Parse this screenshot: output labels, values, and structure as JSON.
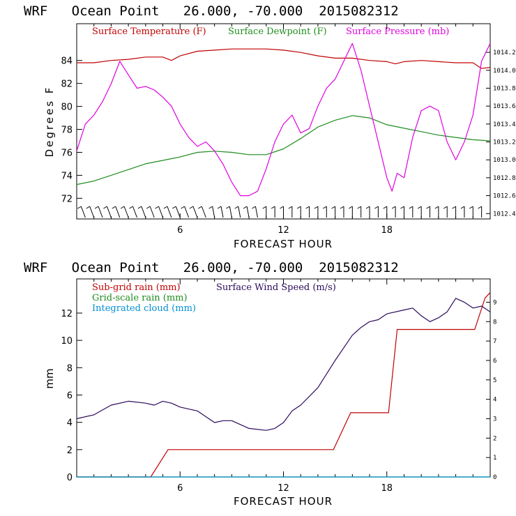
{
  "colors": {
    "temperature": "#c00000",
    "dewpoint": "#1e8c1e",
    "pressure": "#e000e0",
    "subgrid_rain": "#c00000",
    "gridscale_rain": "#1e8c1e",
    "cloud": "#0090d0",
    "wind": "#2a0a5a",
    "barb": "#000000"
  },
  "chart_data": [
    {
      "type": "line",
      "title": "WRF   Ocean Point   26.000, -70.000  2015082312",
      "xlabel": "FORECAST HOUR",
      "ylabel": "Degrees F",
      "xlim": [
        0,
        24
      ],
      "ylim": [
        70.2,
        87.2
      ],
      "xticks": [
        6,
        12,
        18
      ],
      "yticks": [
        72,
        74,
        76,
        78,
        80,
        82,
        84
      ],
      "y2lim": [
        1012.34,
        1014.52
      ],
      "y2ticks": [
        "1012.4",
        "1012.6",
        "1012.8",
        "1013.0",
        "1013.2",
        "1013.4",
        "1013.6",
        "1013.8",
        "1014.0",
        "1014.2"
      ],
      "legend": [
        "Surface Temperature (F)",
        "Surface Dewpoint (F)",
        "Surface Pressure (mb)"
      ],
      "wind_barbs": "wind barbs along bottom of panel",
      "series": [
        {
          "name": "Surface Temperature (F)",
          "axis": "left",
          "x": [
            0,
            1,
            2,
            3,
            4,
            5,
            5.5,
            6,
            7,
            8,
            9,
            10,
            11,
            12,
            13,
            14,
            15,
            16,
            17,
            18,
            18.5,
            19,
            20,
            21,
            22,
            23,
            23.5,
            24
          ],
          "values": [
            83.8,
            83.8,
            84.0,
            84.1,
            84.3,
            84.3,
            84.0,
            84.4,
            84.8,
            84.9,
            85.0,
            85.0,
            85.0,
            84.9,
            84.7,
            84.4,
            84.2,
            84.2,
            84.0,
            83.9,
            83.7,
            83.9,
            84.0,
            83.9,
            83.8,
            83.8,
            83.3,
            83.4
          ]
        },
        {
          "name": "Surface Dewpoint (F)",
          "axis": "left",
          "x": [
            0,
            1,
            2,
            3,
            4,
            5,
            6,
            7,
            8,
            9,
            10,
            11,
            12,
            13,
            14,
            15,
            16,
            17,
            18,
            19,
            20,
            21,
            22,
            23,
            24
          ],
          "values": [
            73.2,
            73.5,
            74.0,
            74.5,
            75.0,
            75.3,
            75.6,
            76.0,
            76.1,
            76.0,
            75.8,
            75.8,
            76.3,
            77.2,
            78.2,
            78.8,
            79.2,
            79.0,
            78.4,
            78.1,
            77.8,
            77.5,
            77.3,
            77.1,
            77.0
          ]
        },
        {
          "name": "Surface Pressure (mb)",
          "axis": "right",
          "x": [
            0,
            0.5,
            1,
            1.5,
            2,
            2.5,
            3,
            3.5,
            4,
            4.5,
            5,
            5.5,
            6,
            6.5,
            7,
            7.5,
            8,
            8.5,
            9,
            9.5,
            10,
            10.5,
            11,
            11.5,
            12,
            12.5,
            13,
            13.5,
            14,
            14.5,
            15,
            15.5,
            16,
            16.5,
            17,
            17.5,
            18,
            18.3,
            18.6,
            19,
            19.5,
            20,
            20.5,
            21,
            21.5,
            22,
            22.5,
            23,
            23.5,
            24
          ],
          "values": [
            1013.1,
            1013.4,
            1013.5,
            1013.65,
            1013.85,
            1014.1,
            1013.95,
            1013.8,
            1013.82,
            1013.78,
            1013.7,
            1013.6,
            1013.4,
            1013.25,
            1013.15,
            1013.2,
            1013.1,
            1012.95,
            1012.75,
            1012.6,
            1012.6,
            1012.65,
            1012.9,
            1013.2,
            1013.4,
            1013.5,
            1013.3,
            1013.35,
            1013.6,
            1013.8,
            1013.9,
            1014.1,
            1014.3,
            1014.0,
            1013.6,
            1013.2,
            1012.8,
            1012.65,
            1012.85,
            1012.8,
            1013.25,
            1013.55,
            1013.6,
            1013.55,
            1013.2,
            1013.0,
            1013.2,
            1013.5,
            1014.1,
            1014.3
          ]
        }
      ]
    },
    {
      "type": "line",
      "title": "WRF   Ocean Point   26.000, -70.000  2015082312",
      "xlabel": "FORECAST HOUR",
      "ylabel": "mm",
      "xlim": [
        0,
        24
      ],
      "ylim": [
        0,
        14.5
      ],
      "xticks": [
        6,
        12,
        18
      ],
      "yticks": [
        0,
        2,
        4,
        6,
        8,
        10,
        12
      ],
      "y2lim": [
        0,
        10.2
      ],
      "y2ticks": [
        "0",
        "1",
        "2",
        "3",
        "4",
        "5",
        "6",
        "7",
        "8",
        "9"
      ],
      "legend": [
        "Sub-grid rain (mm)",
        "Grid-scale rain (mm)",
        "Integrated cloud (mm)",
        "Surface Wind Speed (m/s)"
      ],
      "series": [
        {
          "name": "Sub-grid rain (mm)",
          "axis": "left",
          "x": [
            0,
            4.3,
            5.3,
            14.9,
            15.9,
            18.1,
            18.6,
            23.1,
            23.7,
            24
          ],
          "values": [
            0,
            0,
            2.0,
            2.0,
            4.7,
            4.7,
            10.8,
            10.8,
            13.1,
            13.5
          ]
        },
        {
          "name": "Grid-scale rain (mm)",
          "axis": "left",
          "x": [
            0,
            24
          ],
          "values": [
            0,
            0
          ]
        },
        {
          "name": "Integrated cloud (mm)",
          "axis": "left",
          "x": [
            0,
            24
          ],
          "values": [
            0,
            0
          ]
        },
        {
          "name": "Surface Wind Speed (m/s)",
          "axis": "right",
          "x": [
            0,
            1,
            2,
            3,
            4,
            4.5,
            5,
            5.5,
            6,
            7,
            8,
            8.5,
            9,
            10,
            11,
            11.5,
            12,
            12.5,
            13,
            14,
            15,
            16,
            16.5,
            17,
            17.5,
            18,
            19,
            19.5,
            20,
            20.5,
            21,
            21.5,
            22,
            22.5,
            23,
            23.5,
            24
          ],
          "values": [
            3.0,
            3.2,
            3.7,
            3.9,
            3.8,
            3.7,
            3.9,
            3.8,
            3.6,
            3.4,
            2.8,
            2.9,
            2.9,
            2.5,
            2.4,
            2.5,
            2.8,
            3.4,
            3.7,
            4.6,
            6.0,
            7.3,
            7.7,
            8.0,
            8.1,
            8.4,
            8.6,
            8.7,
            8.3,
            8.0,
            8.2,
            8.5,
            9.2,
            9.0,
            8.7,
            8.8,
            8.5
          ]
        }
      ]
    }
  ]
}
